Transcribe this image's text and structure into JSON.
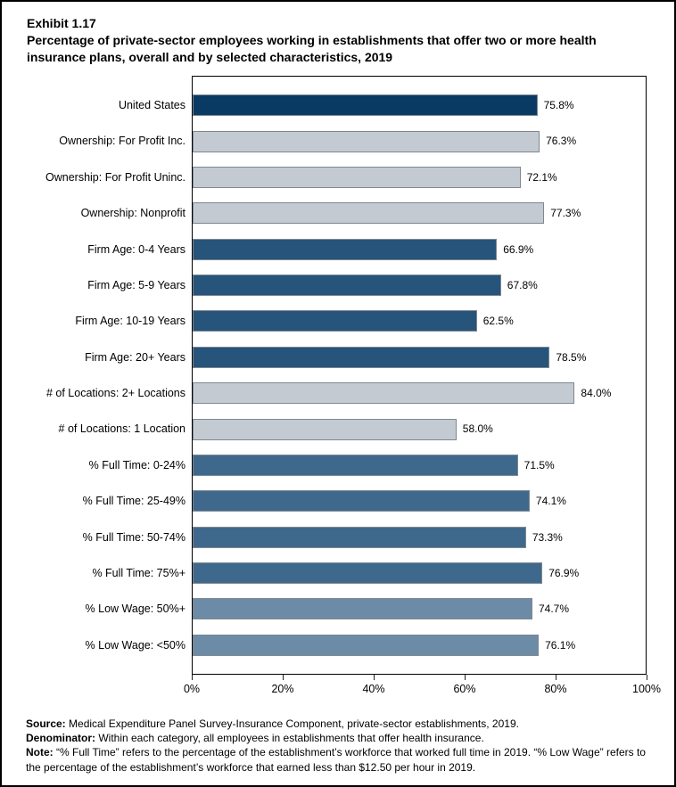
{
  "page": {
    "exhibit_label": "Exhibit 1.17",
    "title": "Percentage of private-sector employees working in establishments that offer two or more health insurance plans, overall and by selected characteristics, 2019"
  },
  "chart_data": {
    "type": "bar",
    "orientation": "horizontal",
    "title": "Percentage of private-sector employees working in establishments that offer two or more health insurance plans, overall and by selected characteristics, 2019",
    "xlabel": "",
    "ylabel": "",
    "xlim": [
      0,
      100
    ],
    "grid": false,
    "legend": "none",
    "x_tick_values": [
      0,
      20,
      40,
      60,
      80,
      100
    ],
    "x_tick_labels": [
      "0%",
      "20%",
      "40%",
      "60%",
      "80%",
      "100%"
    ],
    "bar_border_color": "#7E8891",
    "colors": {
      "united_states": "#093A63",
      "ownership": "#C3CAD1",
      "firm_age": "#26547B",
      "locations": "#C3CAD1",
      "full_time": "#3F698C",
      "low_wage": "#6C8BA6"
    },
    "bars": [
      {
        "label": "United States",
        "value": 75.8,
        "display": "75.8%",
        "group": "united_states"
      },
      {
        "label": "Ownership: For Profit Inc.",
        "value": 76.3,
        "display": "76.3%",
        "group": "ownership"
      },
      {
        "label": "Ownership: For Profit Uninc.",
        "value": 72.1,
        "display": "72.1%",
        "group": "ownership"
      },
      {
        "label": "Ownership: Nonprofit",
        "value": 77.3,
        "display": "77.3%",
        "group": "ownership"
      },
      {
        "label": "Firm Age: 0-4 Years",
        "value": 66.9,
        "display": "66.9%",
        "group": "firm_age"
      },
      {
        "label": "Firm Age: 5-9 Years",
        "value": 67.8,
        "display": "67.8%",
        "group": "firm_age"
      },
      {
        "label": "Firm Age: 10-19 Years",
        "value": 62.5,
        "display": "62.5%",
        "group": "firm_age"
      },
      {
        "label": "Firm Age: 20+ Years",
        "value": 78.5,
        "display": "78.5%",
        "group": "firm_age"
      },
      {
        "label": "# of Locations: 2+ Locations",
        "value": 84.0,
        "display": "84.0%",
        "group": "locations"
      },
      {
        "label": "# of Locations: 1 Location",
        "value": 58.0,
        "display": "58.0%",
        "group": "locations"
      },
      {
        "label": "% Full Time: 0-24%",
        "value": 71.5,
        "display": "71.5%",
        "group": "full_time"
      },
      {
        "label": "% Full Time: 25-49%",
        "value": 74.1,
        "display": "74.1%",
        "group": "full_time"
      },
      {
        "label": "% Full Time: 50-74%",
        "value": 73.3,
        "display": "73.3%",
        "group": "full_time"
      },
      {
        "label": "% Full Time: 75%+",
        "value": 76.9,
        "display": "76.9%",
        "group": "full_time"
      },
      {
        "label": "% Low Wage: 50%+",
        "value": 74.7,
        "display": "74.7%",
        "group": "low_wage"
      },
      {
        "label": "% Low Wage: <50%",
        "value": 76.1,
        "display": "76.1%",
        "group": "low_wage"
      }
    ]
  },
  "footer": {
    "lines": [
      {
        "label": "Source:",
        "text": " Medical Expenditure Panel Survey-Insurance Component, private-sector establishments, 2019."
      },
      {
        "label": "Denominator:",
        "text": " Within each category, all employees in establishments that offer health insurance."
      },
      {
        "label": "Note:",
        "text": " “% Full Time” refers to the percentage of the establishment’s workforce that worked full time in 2019. “% Low Wage” refers to the percentage of the establishment’s workforce that earned less than $12.50 per hour in 2019."
      }
    ]
  }
}
